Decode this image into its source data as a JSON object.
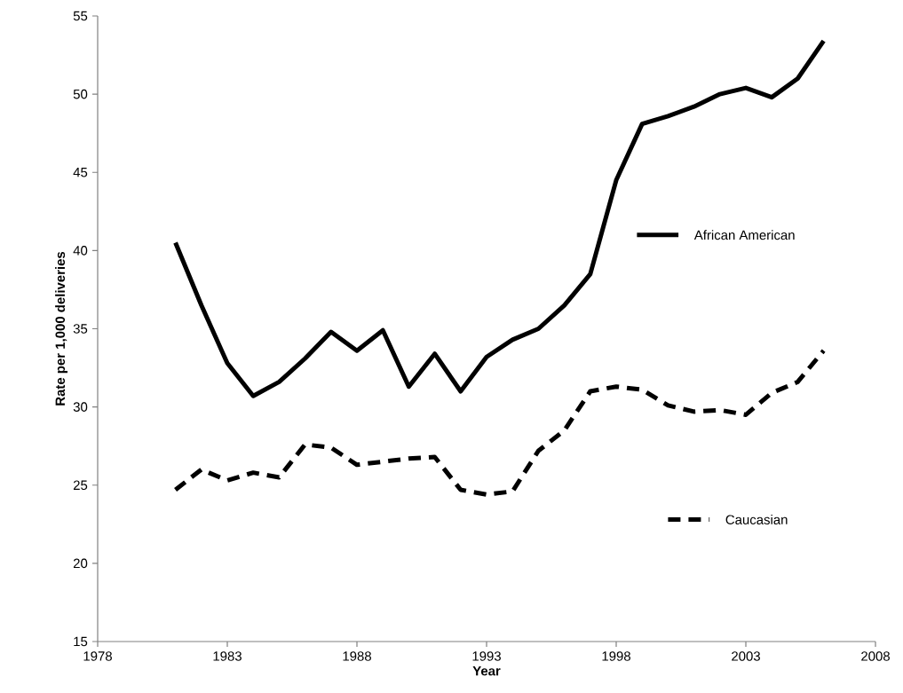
{
  "chart_data": {
    "type": "line",
    "xlabel": "Year",
    "ylabel": "Rate per 1,000 deliveries",
    "x": [
      1981,
      1982,
      1983,
      1984,
      1985,
      1986,
      1987,
      1988,
      1989,
      1990,
      1991,
      1992,
      1993,
      1994,
      1995,
      1996,
      1997,
      1998,
      1999,
      2000,
      2001,
      2002,
      2003,
      2004,
      2005,
      2006
    ],
    "series": [
      {
        "name": "African American",
        "color": "#000000",
        "line_style": "solid",
        "values": [
          40.5,
          36.5,
          32.8,
          30.7,
          31.6,
          33.1,
          34.8,
          33.6,
          34.9,
          31.3,
          33.4,
          31.0,
          33.2,
          34.3,
          35.0,
          36.5,
          38.5,
          44.5,
          48.1,
          48.6,
          49.2,
          50.0,
          50.4,
          49.8,
          51.0,
          53.4
        ]
      },
      {
        "name": "Caucasian",
        "color": "#000000",
        "line_style": "dashed",
        "values": [
          24.7,
          26.0,
          25.3,
          25.8,
          25.5,
          27.6,
          27.4,
          26.3,
          26.5,
          26.7,
          26.8,
          24.7,
          24.4,
          24.6,
          27.2,
          28.5,
          31.0,
          31.3,
          31.1,
          30.1,
          29.7,
          29.8,
          29.5,
          30.9,
          31.6,
          33.6
        ]
      }
    ],
    "xlim": [
      1978,
      2008
    ],
    "xticks": [
      1978,
      1983,
      1988,
      1993,
      1998,
      2003,
      2008
    ],
    "ylim": [
      15,
      55
    ],
    "yticks": [
      15,
      20,
      25,
      30,
      35,
      40,
      45,
      50,
      55
    ],
    "grid": false,
    "legend": "right",
    "marker": "none"
  }
}
